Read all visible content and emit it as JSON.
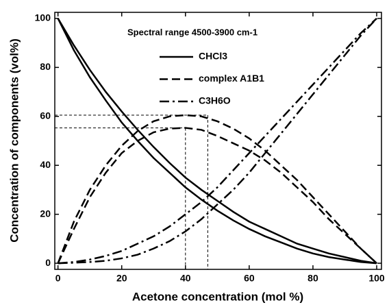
{
  "chart_data": {
    "type": "line",
    "legend_title": "Spectral range 4500-3900 cm-1",
    "xlabel": "Acetone concentration (mol %)",
    "ylabel": "Concentration of components (vol%)",
    "x": [
      0,
      5,
      10,
      15,
      20,
      25,
      30,
      35,
      40,
      45,
      50,
      55,
      60,
      65,
      70,
      75,
      80,
      85,
      90,
      95,
      100
    ],
    "series": [
      {
        "name": "CHCl3",
        "color": "#000000",
        "dash": "solid",
        "curves": [
          [
            100,
            89,
            79,
            70,
            62,
            54.5,
            47.5,
            41,
            35,
            30,
            25.5,
            21,
            17,
            14,
            11,
            8,
            6,
            4,
            2.5,
            1,
            0
          ],
          [
            100,
            87,
            76,
            66.5,
            57.5,
            50,
            43,
            37,
            31,
            26,
            21.5,
            17.5,
            14,
            11,
            8.5,
            6,
            4,
            2.5,
            1.5,
            0.5,
            0
          ]
        ]
      },
      {
        "name": "complex A1B1",
        "color": "#000000",
        "dash": "dash",
        "curves": [
          [
            0,
            17,
            30,
            40,
            48,
            54,
            58,
            60,
            60.5,
            60,
            58,
            55,
            51,
            46,
            40,
            34,
            27,
            20,
            13,
            6,
            0
          ],
          [
            0,
            14,
            27,
            37,
            45,
            50,
            53.5,
            55,
            55.3,
            54.5,
            52,
            49,
            46,
            42,
            37,
            31,
            25,
            18,
            12,
            6,
            0
          ]
        ]
      },
      {
        "name": "C3H6O",
        "color": "#000000",
        "dash": "dashdot",
        "curves": [
          [
            0,
            0.2,
            0.5,
            1,
            2,
            3.5,
            6,
            9,
            13,
            18,
            24,
            30,
            37,
            45,
            53,
            61,
            69,
            77,
            85,
            93,
            100
          ],
          [
            0,
            0.5,
            1.5,
            3,
            5,
            8,
            11,
            15,
            20,
            25,
            31,
            38,
            45,
            52,
            59,
            66,
            73,
            80,
            87,
            94,
            100
          ]
        ]
      }
    ],
    "guides": [
      {
        "x": 40,
        "y": 55.3
      },
      {
        "x": 47,
        "y": 60.5
      }
    ],
    "xlim": [
      -1,
      101.5
    ],
    "ylim": [
      -2.5,
      102.5
    ],
    "xticks": [
      0,
      20,
      40,
      60,
      80,
      100
    ],
    "yticks": [
      0,
      20,
      40,
      60,
      80,
      100
    ]
  }
}
